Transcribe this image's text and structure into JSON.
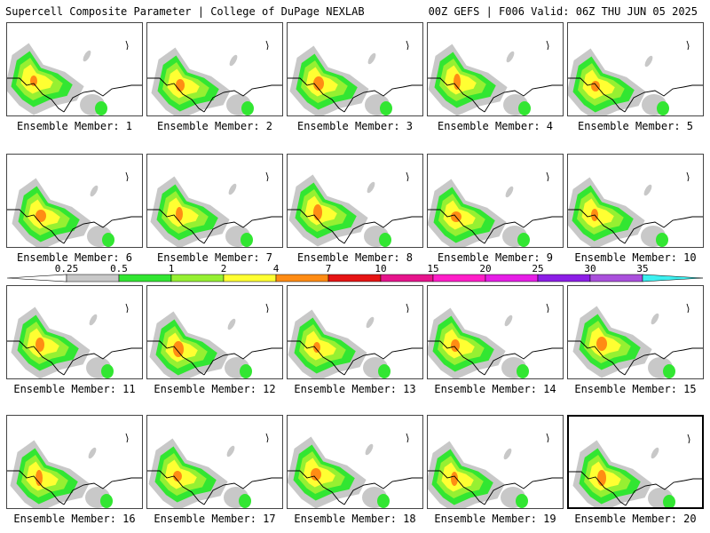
{
  "header": {
    "left": "Supercell Composite Parameter | College of DuPage NEXLAB",
    "right": "00Z GEFS | F006 Valid: 06Z THU JUN 05 2025"
  },
  "colorbar": {
    "labels": [
      "0.25",
      "0.5",
      "1",
      "2",
      "4",
      "7",
      "10",
      "15",
      "20",
      "25",
      "30",
      "35"
    ],
    "colors": [
      "#c8c8c8",
      "#32e632",
      "#96f032",
      "#ffff32",
      "#ff8c14",
      "#e61414",
      "#e6148c",
      "#ff1ec8",
      "#e61ee6",
      "#8c1ee6",
      "#aa50dc",
      "#3cf0f0"
    ]
  },
  "members": [
    {
      "label": "Ensemble Member: 1"
    },
    {
      "label": "Ensemble Member: 2"
    },
    {
      "label": "Ensemble Member: 3"
    },
    {
      "label": "Ensemble Member: 4"
    },
    {
      "label": "Ensemble Member: 5"
    },
    {
      "label": "Ensemble Member: 6"
    },
    {
      "label": "Ensemble Member: 7"
    },
    {
      "label": "Ensemble Member: 8"
    },
    {
      "label": "Ensemble Member: 9"
    },
    {
      "label": "Ensemble Member: 10"
    },
    {
      "label": "Ensemble Member: 11"
    },
    {
      "label": "Ensemble Member: 12"
    },
    {
      "label": "Ensemble Member: 13"
    },
    {
      "label": "Ensemble Member: 14"
    },
    {
      "label": "Ensemble Member: 15"
    },
    {
      "label": "Ensemble Member: 16"
    },
    {
      "label": "Ensemble Member: 17"
    },
    {
      "label": "Ensemble Member: 18"
    },
    {
      "label": "Ensemble Member: 19"
    },
    {
      "label": "Ensemble Member: 20",
      "selected": true
    }
  ]
}
